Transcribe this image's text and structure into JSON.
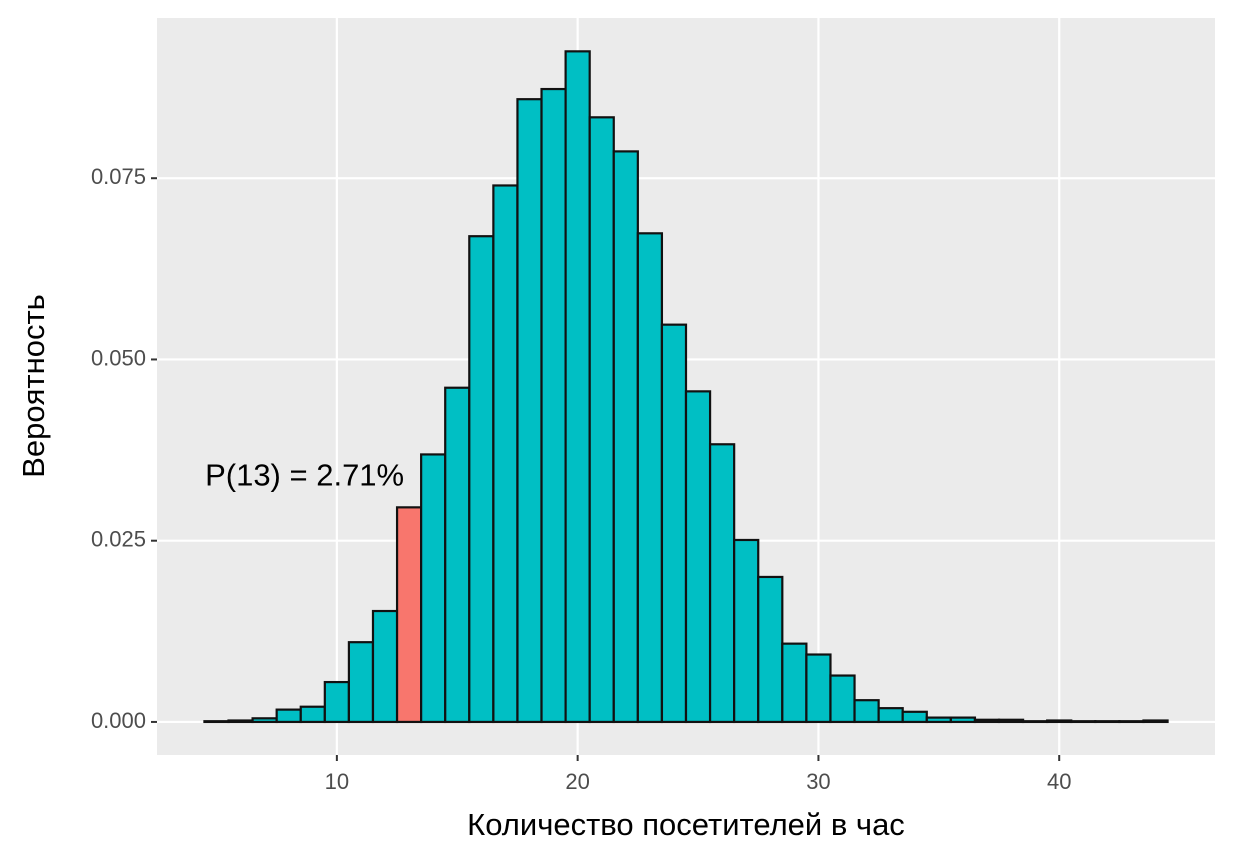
{
  "chart_data": {
    "type": "bar",
    "x_label": "Количество посетителей в час",
    "y_label": "Вероятность",
    "annotation": "P(13) = 2.71%",
    "x": [
      5,
      6,
      7,
      8,
      9,
      10,
      11,
      12,
      13,
      14,
      15,
      16,
      17,
      18,
      19,
      20,
      21,
      22,
      23,
      24,
      25,
      26,
      27,
      28,
      29,
      30,
      31,
      32,
      33,
      34,
      35,
      36,
      37,
      38,
      39,
      40,
      41,
      42,
      43,
      44
    ],
    "values": [
      0.0001,
      0.0002,
      0.0005,
      0.0017,
      0.0021,
      0.0055,
      0.011,
      0.0153,
      0.0296,
      0.0369,
      0.0461,
      0.067,
      0.074,
      0.0859,
      0.0873,
      0.0925,
      0.0834,
      0.0787,
      0.0674,
      0.0548,
      0.0456,
      0.0383,
      0.0251,
      0.02,
      0.0108,
      0.0093,
      0.0064,
      0.003,
      0.0019,
      0.0014,
      0.0006,
      0.0006,
      0.0003,
      0.0003,
      0.0001,
      0.0002,
      0.0001,
      0.0001,
      0.0001,
      0.0002
    ],
    "colors": [
      "#00bfc4",
      "#00bfc4",
      "#00bfc4",
      "#00bfc4",
      "#00bfc4",
      "#00bfc4",
      "#00bfc4",
      "#00bfc4",
      "#f8766d",
      "#00bfc4",
      "#00bfc4",
      "#00bfc4",
      "#00bfc4",
      "#00bfc4",
      "#00bfc4",
      "#00bfc4",
      "#00bfc4",
      "#00bfc4",
      "#00bfc4",
      "#00bfc4",
      "#00bfc4",
      "#00bfc4",
      "#00bfc4",
      "#00bfc4",
      "#00bfc4",
      "#00bfc4",
      "#00bfc4",
      "#00bfc4",
      "#00bfc4",
      "#00bfc4",
      "#00bfc4",
      "#00bfc4",
      "#00bfc4",
      "#00bfc4",
      "#00bfc4",
      "#00bfc4",
      "#00bfc4",
      "#00bfc4",
      "#00bfc4",
      "#00bfc4"
    ],
    "xlim": [
      2.53,
      46.47
    ],
    "ylim": [
      -0.00456,
      0.0971
    ],
    "xticks": [
      10,
      20,
      30,
      40
    ],
    "yticks": [
      {
        "value": 0,
        "label": "0.000"
      },
      {
        "value": 0.025,
        "label": "0.025"
      },
      {
        "value": 0.05,
        "label": "0.050"
      },
      {
        "value": 0.075,
        "label": "0.075"
      }
    ],
    "grid": true
  }
}
